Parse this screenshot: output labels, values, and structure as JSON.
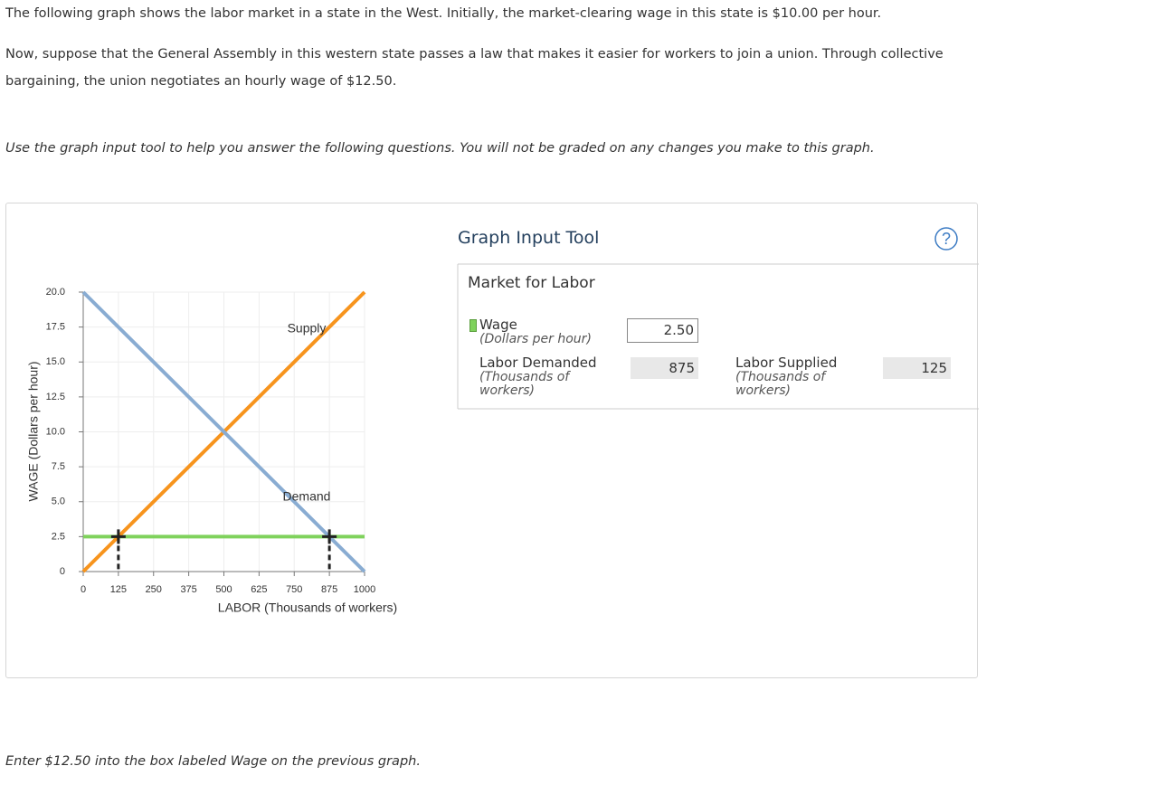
{
  "paragraphs": [
    "The following graph shows the labor market in a state in the West. Initially, the market-clearing wage in this state is $10.00 per hour.",
    "Now, suppose that the General Assembly in this western state passes a law that makes it easier for workers to join a union. Through collective bargaining, the union negotiates an hourly wage of $12.50.",
    "Use the graph input tool to help you answer the following questions. You will not be graded on any changes you make to this graph."
  ],
  "footer": "Enter $12.50 into the box labeled Wage on the previous graph.",
  "chart_data": {
    "type": "line",
    "xlabel": "LABOR (Thousands of workers)",
    "ylabel": "WAGE (Dollars per hour)",
    "xlim": [
      0,
      1000
    ],
    "xticks": [
      0,
      125,
      250,
      375,
      500,
      625,
      750,
      875,
      1000
    ],
    "ylim": [
      0,
      20
    ],
    "yticks": [
      0,
      2.5,
      {
        "value": 5,
        "label": "5.0"
      },
      7.5,
      {
        "value": 10,
        "label": "10.0"
      },
      12.5,
      {
        "value": 15,
        "label": "15.0"
      },
      17.5,
      {
        "value": 20,
        "label": "20.0"
      }
    ],
    "grid": true,
    "series": [
      {
        "name": "Supply",
        "color": "#f7941d",
        "x": [
          0,
          1000
        ],
        "values": [
          0,
          20
        ]
      },
      {
        "name": "Demand",
        "color": "#89acd2",
        "x": [
          0,
          1000
        ],
        "values": [
          20,
          0
        ]
      },
      {
        "name": "Wage",
        "color": "#7fd25c",
        "x": [
          0,
          1000
        ],
        "values": [
          2.5,
          2.5
        ]
      }
    ],
    "points": {
      "x": [
        125,
        875
      ],
      "values": [
        2.5,
        2.5
      ]
    }
  },
  "tool": {
    "title": "Graph Input Tool",
    "help": "?",
    "panel_title": "Market for Labor",
    "wage_unit": "(Dollars per hour)",
    "wage_value": "2.50",
    "demanded_label": "Labor Demanded",
    "demanded_unit": "(Thousands of workers)",
    "demanded_value": 875,
    "supplied_label": "Labor Supplied",
    "supplied_unit": "(Thousands of workers)",
    "supplied_value": 125
  }
}
